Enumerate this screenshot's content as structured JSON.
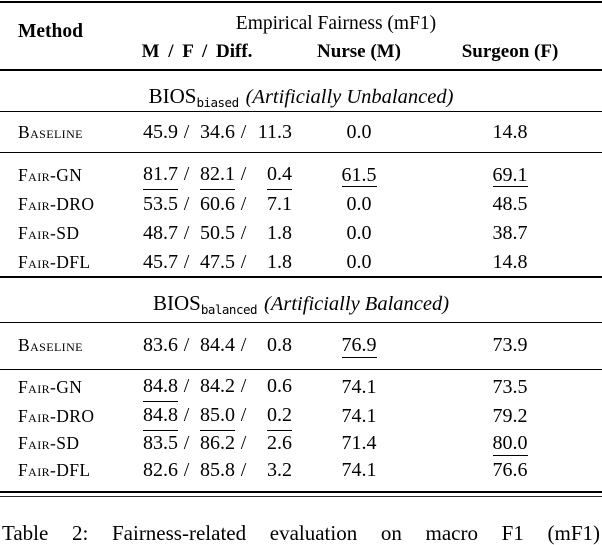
{
  "colors": {
    "background": "#ffffff",
    "text": "#000000",
    "rule": "#000000"
  },
  "table": {
    "header": {
      "method_label": "Method",
      "group_label": "Empirical Fairness (mF1)",
      "mfd_label": "M / F / Diff.",
      "nurse_label": "Nurse (M)",
      "surgeon_label": "Surgeon (F)"
    },
    "sep": "/",
    "sections": [
      {
        "title_dataset": "BIOS",
        "title_subscript": "biased",
        "title_note": "(Artificially Unbalanced)",
        "rows": [
          {
            "method": "Baseline",
            "m": "45.9",
            "f": "34.6",
            "diff": "11.3",
            "nurse": "0.0",
            "surgeon": "14.8",
            "underline": []
          },
          {
            "method": "Fair-GN",
            "m": "81.7",
            "f": "82.1",
            "diff": "0.4",
            "nurse": "61.5",
            "surgeon": "69.1",
            "underline": [
              "m",
              "f",
              "diff",
              "nurse",
              "surgeon"
            ]
          },
          {
            "method": "Fair-DRO",
            "m": "53.5",
            "f": "60.6",
            "diff": "7.1",
            "nurse": "0.0",
            "surgeon": "48.5",
            "underline": []
          },
          {
            "method": "Fair-SD",
            "m": "48.7",
            "f": "50.5",
            "diff": "1.8",
            "nurse": "0.0",
            "surgeon": "38.7",
            "underline": []
          },
          {
            "method": "Fair-DFL",
            "m": "45.7",
            "f": "47.5",
            "diff": "1.8",
            "nurse": "0.0",
            "surgeon": "14.8",
            "underline": []
          }
        ]
      },
      {
        "title_dataset": "BIOS",
        "title_subscript": "balanced",
        "title_note": "(Artificially Balanced)",
        "rows": [
          {
            "method": "Baseline",
            "m": "83.6",
            "f": "84.4",
            "diff": "0.8",
            "nurse": "76.9",
            "surgeon": "73.9",
            "underline": [
              "nurse"
            ]
          },
          {
            "method": "Fair-GN",
            "m": "84.8",
            "f": "84.2",
            "diff": "0.6",
            "nurse": "74.1",
            "surgeon": "73.5",
            "underline": [
              "m"
            ]
          },
          {
            "method": "Fair-DRO",
            "m": "84.8",
            "f": "85.0",
            "diff": "0.2",
            "nurse": "74.1",
            "surgeon": "79.2",
            "underline": [
              "m",
              "f",
              "diff"
            ]
          },
          {
            "method": "Fair-SD",
            "m": "83.5",
            "f": "86.2",
            "diff": "2.6",
            "nurse": "71.4",
            "surgeon": "80.0",
            "underline": [
              "surgeon"
            ]
          },
          {
            "method": "Fair-DFL",
            "m": "82.6",
            "f": "85.8",
            "diff": "3.2",
            "nurse": "74.1",
            "surgeon": "76.6",
            "underline": []
          }
        ]
      }
    ],
    "caption_partial": "Table 2: Fairness-related evaluation on macro F1 (mF1)"
  }
}
